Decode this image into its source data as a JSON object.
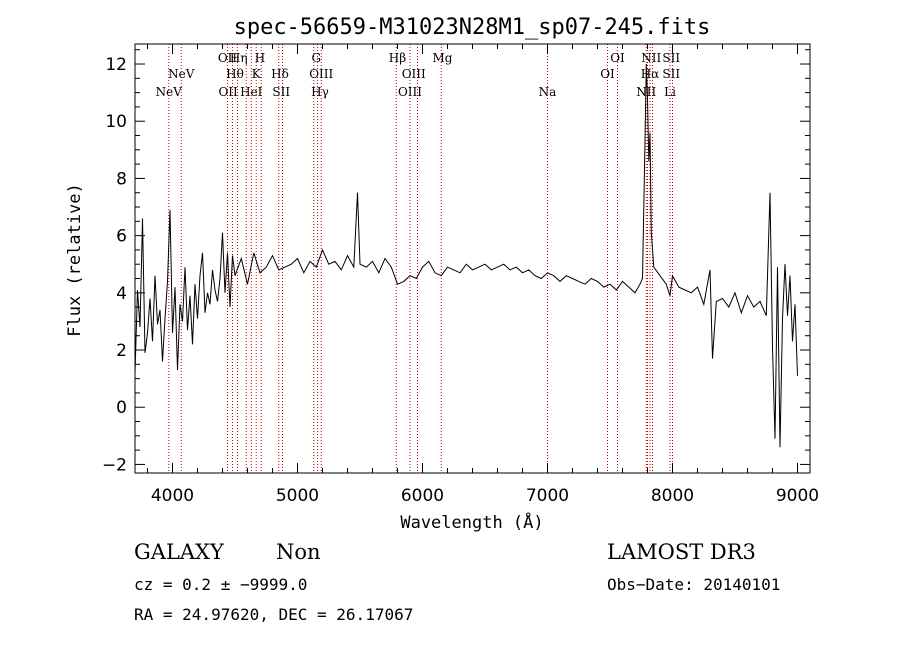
{
  "chart_data": {
    "type": "line",
    "title": "spec-56659-M31023N28M1_sp07-245.fits",
    "xlabel": "Wavelength (Å)",
    "ylabel": "Flux (relative)",
    "xlim": [
      3700,
      9100
    ],
    "ylim": [
      -2.3,
      12.7
    ],
    "xticks": [
      4000,
      5000,
      6000,
      7000,
      8000,
      9000
    ],
    "yticks": [
      -2,
      0,
      2,
      4,
      6,
      8,
      10,
      12
    ],
    "xtick_labels": [
      "4000",
      "5000",
      "6000",
      "7000",
      "8000",
      "9000"
    ],
    "ytick_labels": [
      "−2",
      "0",
      "2",
      "4",
      "6",
      "8",
      "10",
      "12"
    ],
    "series": [
      {
        "name": "flux",
        "x": [
          3700,
          3720,
          3740,
          3760,
          3780,
          3800,
          3820,
          3840,
          3860,
          3880,
          3900,
          3920,
          3940,
          3960,
          3980,
          4000,
          4020,
          4040,
          4060,
          4080,
          4100,
          4120,
          4140,
          4160,
          4180,
          4200,
          4220,
          4240,
          4260,
          4280,
          4300,
          4320,
          4340,
          4360,
          4380,
          4400,
          4420,
          4440,
          4460,
          4480,
          4500,
          4550,
          4600,
          4650,
          4700,
          4750,
          4800,
          4850,
          4900,
          4950,
          5000,
          5050,
          5100,
          5150,
          5200,
          5250,
          5300,
          5350,
          5400,
          5450,
          5480,
          5500,
          5550,
          5600,
          5650,
          5700,
          5750,
          5800,
          5850,
          5900,
          5950,
          6000,
          6050,
          6100,
          6150,
          6200,
          6250,
          6300,
          6350,
          6400,
          6450,
          6500,
          6550,
          6600,
          6650,
          6700,
          6750,
          6800,
          6850,
          6900,
          6950,
          7000,
          7050,
          7100,
          7150,
          7200,
          7250,
          7300,
          7350,
          7400,
          7450,
          7500,
          7550,
          7600,
          7650,
          7700,
          7740,
          7760,
          7780,
          7790,
          7800,
          7810,
          7820,
          7830,
          7850,
          7900,
          7950,
          7980,
          8000,
          8050,
          8100,
          8150,
          8200,
          8250,
          8300,
          8320,
          8350,
          8400,
          8450,
          8500,
          8550,
          8600,
          8650,
          8700,
          8750,
          8780,
          8800,
          8820,
          8840,
          8860,
          8880,
          8900,
          8920,
          8940,
          8960,
          8980,
          9000
        ],
        "y": [
          1.2,
          4.1,
          2.8,
          6.6,
          1.9,
          2.6,
          3.8,
          2.3,
          4.6,
          2.9,
          3.4,
          1.6,
          3.1,
          4.4,
          6.9,
          2.6,
          4.2,
          1.3,
          3.6,
          3.0,
          4.9,
          2.7,
          3.9,
          2.2,
          4.3,
          3.1,
          4.6,
          5.4,
          3.3,
          4.0,
          3.6,
          4.8,
          4.1,
          3.7,
          4.5,
          6.1,
          4.0,
          5.4,
          3.5,
          5.3,
          4.6,
          5.2,
          4.3,
          5.4,
          4.7,
          4.9,
          5.3,
          4.8,
          4.9,
          5.0,
          5.2,
          4.7,
          5.1,
          4.9,
          5.5,
          5.0,
          5.1,
          4.8,
          5.3,
          4.9,
          7.5,
          5.0,
          4.9,
          5.1,
          4.7,
          5.2,
          4.9,
          4.3,
          4.4,
          4.6,
          4.5,
          4.9,
          5.1,
          4.7,
          4.6,
          4.9,
          4.8,
          4.7,
          5.0,
          4.8,
          4.9,
          5.0,
          4.8,
          4.9,
          5.0,
          4.8,
          4.9,
          4.7,
          4.8,
          4.6,
          4.5,
          4.7,
          4.6,
          4.4,
          4.6,
          4.5,
          4.4,
          4.3,
          4.5,
          4.4,
          4.2,
          4.3,
          4.1,
          4.4,
          4.2,
          4.0,
          4.3,
          4.5,
          9.3,
          12.0,
          10.8,
          8.6,
          9.6,
          6.1,
          4.9,
          4.6,
          4.3,
          3.9,
          4.6,
          4.2,
          4.1,
          4.0,
          4.2,
          3.6,
          4.8,
          1.7,
          3.7,
          3.8,
          3.5,
          4.0,
          3.3,
          3.9,
          3.5,
          3.7,
          3.2,
          7.5,
          2.1,
          -1.1,
          4.9,
          -1.4,
          3.1,
          5.0,
          3.2,
          4.6,
          2.3,
          3.6,
          1.1
        ]
      }
    ],
    "line_markers": [
      {
        "label": "NeV",
        "x": 3970,
        "row": 3
      },
      {
        "label": "NeV",
        "x": 4070,
        "row": 2
      },
      {
        "label": "OII",
        "x": 4440,
        "row": 1
      },
      {
        "label": "OII",
        "x": 4445,
        "row": 3
      },
      {
        "label": "Hη",
        "x": 4530,
        "row": 1
      },
      {
        "label": "Hθ",
        "x": 4500,
        "row": 2
      },
      {
        "label": "HeI",
        "x": 4630,
        "row": 3
      },
      {
        "label": "H",
        "x": 4700,
        "row": 1
      },
      {
        "label": "K",
        "x": 4670,
        "row": 2
      },
      {
        "label": "Hδ",
        "x": 4860,
        "row": 2
      },
      {
        "label": "SII",
        "x": 4870,
        "row": 3
      },
      {
        "label": "G",
        "x": 5150,
        "row": 1
      },
      {
        "label": "OIII",
        "x": 5190,
        "row": 2
      },
      {
        "label": "Hγ",
        "x": 5180,
        "row": 3
      },
      {
        "label": "Hβ",
        "x": 5800,
        "row": 1
      },
      {
        "label": "OIII",
        "x": 5930,
        "row": 2
      },
      {
        "label": "OIII",
        "x": 5900,
        "row": 3
      },
      {
        "label": "Mg",
        "x": 6160,
        "row": 1
      },
      {
        "label": "Na",
        "x": 7000,
        "row": 3
      },
      {
        "label": "OI",
        "x": 7560,
        "row": 1
      },
      {
        "label": "OI",
        "x": 7480,
        "row": 2
      },
      {
        "label": "NII",
        "x": 7830,
        "row": 1
      },
      {
        "label": "Hα",
        "x": 7820,
        "row": 2
      },
      {
        "label": "NII",
        "x": 7790,
        "row": 3
      },
      {
        "label": "SII",
        "x": 7990,
        "row": 1
      },
      {
        "label": "SII",
        "x": 7990,
        "row": 2
      },
      {
        "label": "Li",
        "x": 7980,
        "row": 3
      }
    ],
    "marker_lines_x": [
      3970,
      4070,
      4440,
      4480,
      4520,
      4590,
      4630,
      4670,
      4710,
      4850,
      4880,
      5130,
      5160,
      5190,
      5790,
      5900,
      5960,
      6150,
      7000,
      7480,
      7560,
      7790,
      7800,
      7820,
      7840,
      7980,
      8000
    ],
    "grid": false
  },
  "info": {
    "object_class": "GALAXY",
    "subclass": "Non",
    "survey": "LAMOST DR3",
    "cz": "cz = 0.2 ± −9999.0",
    "obs_date": "Obs−Date: 20140101",
    "coords": "RA =  24.97620, DEC =  26.17067"
  },
  "colors": {
    "line": "#000000",
    "marker": "#cc0000",
    "axis": "#000000"
  }
}
